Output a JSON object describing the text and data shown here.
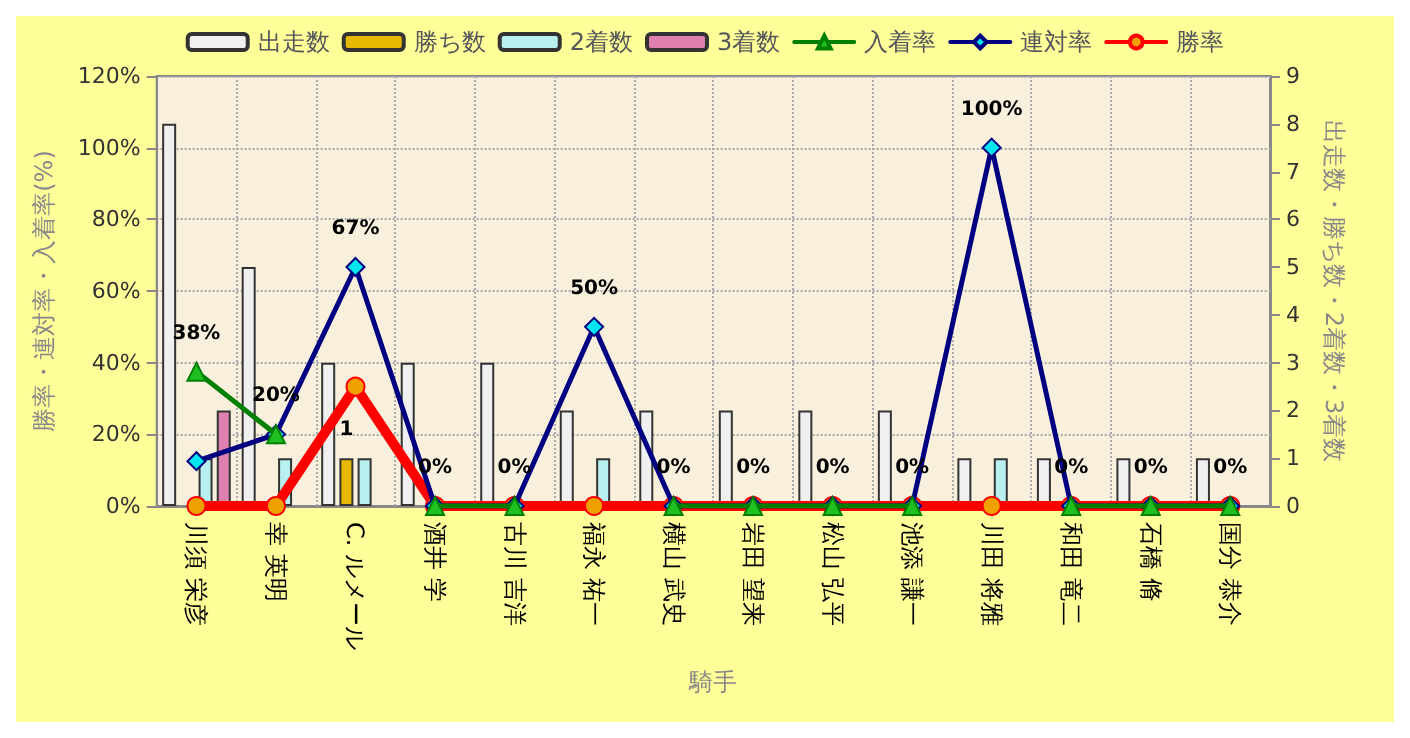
{
  "chart_data": {
    "type": "bar",
    "xlabel": "騎手",
    "ylabel": "勝率・連対率・入着率(%)",
    "y2label": "出走数・勝ち数・2着数・3着数",
    "categories": [
      "川須 栄彦",
      "幸 英明",
      "C. ルメール",
      "酒井 学",
      "古川 吉洋",
      "福永 祐一",
      "横山 武史",
      "岩田 望来",
      "松山 弘平",
      "池添 謙一",
      "川田 将雅",
      "和田 竜二",
      "石橋 脩",
      "国分 恭介"
    ],
    "series": [
      {
        "name": "出走数",
        "axis": "y2",
        "color": "#f0f0f0",
        "values": [
          8,
          5,
          3,
          3,
          3,
          2,
          2,
          2,
          2,
          2,
          1,
          1,
          1,
          1
        ]
      },
      {
        "name": "勝ち数",
        "axis": "y2",
        "color": "#e6b800",
        "values": [
          0,
          0,
          1,
          0,
          0,
          0,
          0,
          0,
          0,
          0,
          0,
          0,
          0,
          0
        ],
        "value_labels": [
          null,
          null,
          "1",
          null,
          null,
          null,
          null,
          null,
          null,
          null,
          null,
          null,
          null,
          null
        ]
      },
      {
        "name": "2着数",
        "axis": "y2",
        "color": "#b8f0f0",
        "values": [
          1,
          1,
          1,
          0,
          0,
          1,
          0,
          0,
          0,
          0,
          1,
          0,
          0,
          0
        ]
      },
      {
        "name": "3着数",
        "axis": "y2",
        "color": "#e080b0",
        "values": [
          2,
          0,
          0,
          0,
          0,
          0,
          0,
          0,
          0,
          0,
          0,
          0,
          0,
          0
        ]
      },
      {
        "name": "入着率",
        "type": "line",
        "marker": "triangle",
        "color": "#008000",
        "values": [
          37.5,
          20,
          null,
          0,
          0,
          null,
          0,
          0,
          0,
          0,
          null,
          0,
          0,
          0
        ],
        "value_labels": [
          "38%",
          null,
          null,
          null,
          null,
          null,
          null,
          null,
          null,
          null,
          null,
          null,
          null,
          null
        ]
      },
      {
        "name": "連対率",
        "type": "line",
        "marker": "diamond",
        "color": "#000080",
        "values": [
          12.5,
          20,
          66.7,
          0,
          0,
          50,
          0,
          0,
          0,
          0,
          100,
          0,
          0,
          0
        ],
        "value_labels": [
          null,
          "20%",
          "67%",
          "0%",
          "0%",
          "50%",
          "0%",
          "0%",
          "0%",
          "0%",
          "100%",
          "0%",
          "0%",
          "0%"
        ]
      },
      {
        "name": "勝率",
        "type": "line",
        "marker": "circle",
        "color": "#ff0000",
        "values": [
          0,
          0,
          33.3,
          0,
          0,
          0,
          0,
          0,
          0,
          0,
          0,
          0,
          0,
          0
        ]
      }
    ],
    "ylim": [
      0,
      120
    ],
    "yticks": [
      {
        "value": 0,
        "label": "0%"
      },
      {
        "value": 20,
        "label": "20%"
      },
      {
        "value": 40,
        "label": "40%"
      },
      {
        "value": 60,
        "label": "60%"
      },
      {
        "value": 80,
        "label": "80%"
      },
      {
        "value": 100,
        "label": "100%"
      },
      {
        "value": 120,
        "label": "120%"
      }
    ],
    "y2lim": [
      0,
      9
    ],
    "y2ticks": [
      0,
      1,
      2,
      3,
      4,
      5,
      6,
      7,
      8,
      9
    ],
    "grid": true,
    "legend": "top",
    "line_style": "solid"
  }
}
